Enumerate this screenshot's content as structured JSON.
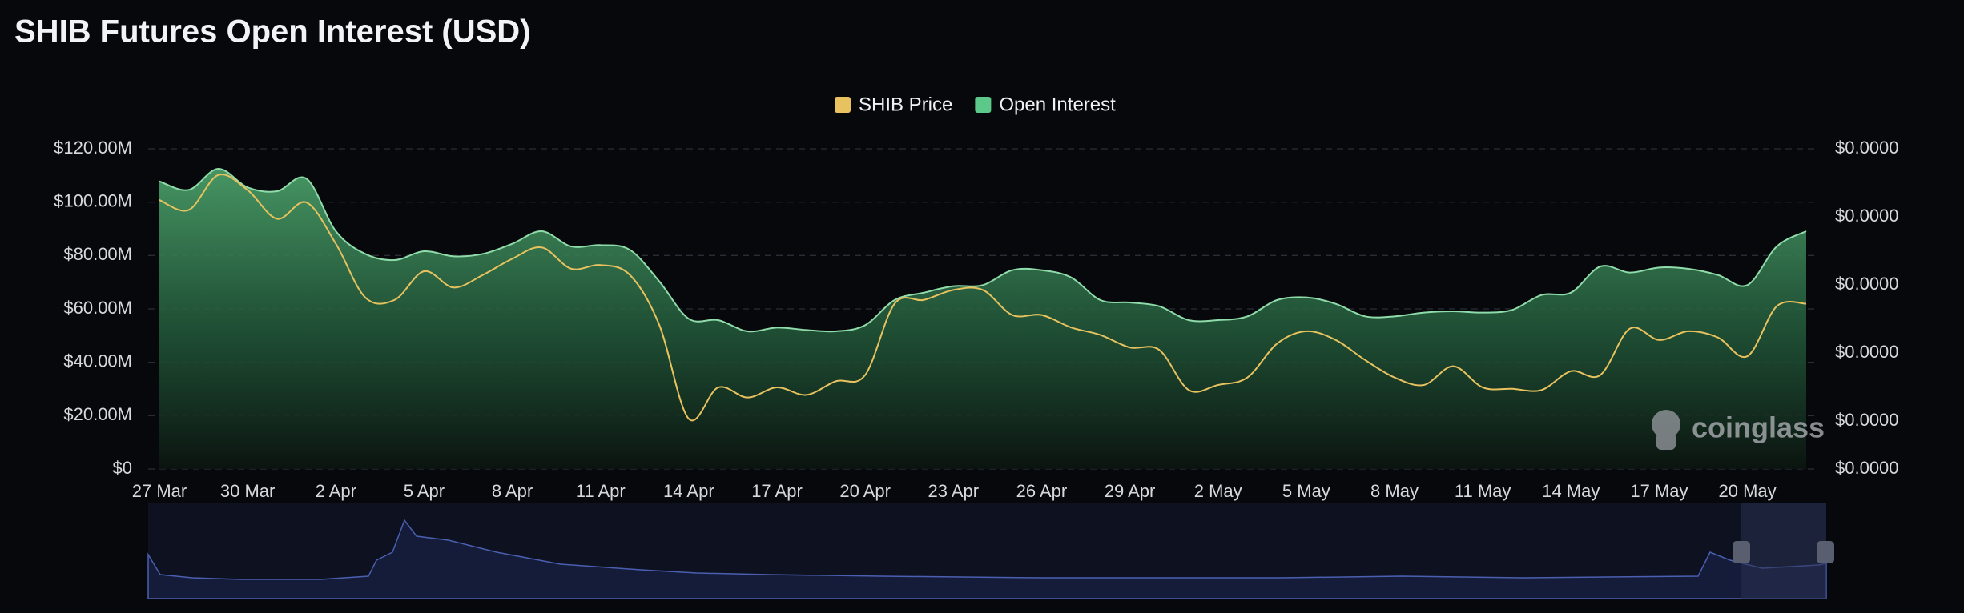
{
  "chart_data": {
    "type": "area_line",
    "title": "SHIB Futures Open Interest (USD)",
    "watermark": "coinglass",
    "categories": [
      "27 Mar",
      null,
      null,
      "30 Mar",
      null,
      null,
      "2 Apr",
      null,
      null,
      "5 Apr",
      null,
      null,
      "8 Apr",
      null,
      null,
      "11 Apr",
      null,
      null,
      "14 Apr",
      null,
      null,
      "17 Apr",
      null,
      null,
      "20 Apr",
      null,
      null,
      "23 Apr",
      null,
      null,
      "26 Apr",
      null,
      null,
      "29 Apr",
      null,
      null,
      "2 May",
      null,
      null,
      "5 May",
      null,
      null,
      "8 May",
      null,
      null,
      "11 May",
      null,
      null,
      "14 May",
      null,
      null,
      "17 May",
      null,
      null,
      "20 May",
      null,
      null
    ],
    "series": [
      {
        "name": "SHIB Price",
        "color": "#e8c25e",
        "axis": "y2",
        "values": [
          2.624e-05,
          2.551e-05,
          2.807e-05,
          2.697e-05,
          2.486e-05,
          2.606e-05,
          2.303e-05,
          1.909e-05,
          1.891e-05,
          2.101e-05,
          1.982e-05,
          2.074e-05,
          2.193e-05,
          2.276e-05,
          2.12e-05,
          2.147e-05,
          2.074e-05,
          1.707e-05,
          1.019e-05,
          1.249e-05,
          1.175e-05,
          1.249e-05,
          1.194e-05,
          1.294e-05,
          1.34e-05,
          1.863e-05,
          1.891e-05,
          1.964e-05,
          1.964e-05,
          1.78e-05,
          1.78e-05,
          1.689e-05,
          1.634e-05,
          1.542e-05,
          1.524e-05,
          1.23e-05,
          1.267e-05,
          1.322e-05,
          1.569e-05,
          1.661e-05,
          1.597e-05,
          1.45e-05,
          1.322e-05,
          1.267e-05,
          1.404e-05,
          1.249e-05,
          1.239e-05,
          1.23e-05,
          1.368e-05,
          1.34e-05,
          1.68e-05,
          1.597e-05,
          1.661e-05,
          1.615e-05,
          1.478e-05,
          1.845e-05,
          1.863e-05
        ]
      },
      {
        "name": "Open Interest",
        "color": "#5cc98a",
        "values": [
          107800000,
          104600000,
          112500000,
          105500000,
          104100000,
          108800000,
          89100000,
          80600000,
          78300000,
          81600000,
          79700000,
          80600000,
          84400000,
          89100000,
          83400000,
          83900000,
          82100000,
          70300000,
          56300000,
          55800000,
          51600000,
          53000000,
          52100000,
          51600000,
          53900000,
          63300000,
          66100000,
          68500000,
          68900000,
          74500000,
          74500000,
          71800000,
          63300000,
          62400000,
          61000000,
          55800000,
          55800000,
          57200000,
          63300000,
          64300000,
          61900000,
          57200000,
          57200000,
          58600000,
          59100000,
          58600000,
          59600000,
          65200000,
          66100000,
          75900000,
          73600000,
          75500000,
          75000000,
          72700000,
          68900000,
          83400000,
          89100000
        ]
      }
    ],
    "ylim": [
      0,
      120000000
    ],
    "yticks": [
      {
        "value": 0,
        "label": "$0"
      },
      {
        "value": 20000000,
        "label": "$20.00M"
      },
      {
        "value": 40000000,
        "label": "$40.00M"
      },
      {
        "value": 60000000,
        "label": "$60.00M"
      },
      {
        "value": 80000000,
        "label": "$80.00M"
      },
      {
        "value": 100000000,
        "label": "$100.00M"
      },
      {
        "value": 120000000,
        "label": "$120.00M"
      }
    ],
    "y2lim": [
      6.5e-06,
      3e-05
    ],
    "y2ticks": [
      {
        "value": 6.5e-06,
        "label": "$0.0000"
      },
      {
        "value": 1e-05,
        "label": "$0.0000"
      },
      {
        "value": 1.5e-05,
        "label": "$0.0000"
      },
      {
        "value": 2e-05,
        "label": "$0.0000"
      },
      {
        "value": 2.5e-05,
        "label": "$0.0000"
      },
      {
        "value": 3e-05,
        "label": "$0.0000"
      }
    ],
    "grid": true,
    "legend": "top"
  }
}
